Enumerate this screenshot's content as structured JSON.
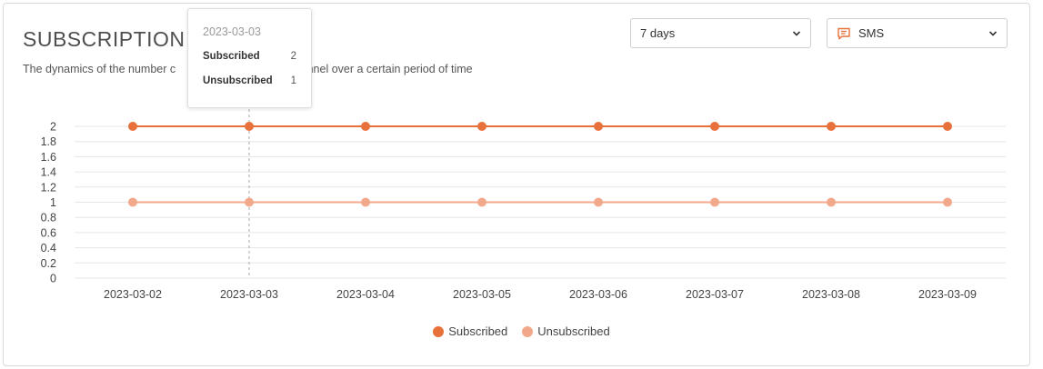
{
  "header": {
    "title": "SUBSCRIPTION D",
    "subtitle": "The dynamics of the number c           annel over a certain period of time"
  },
  "controls": {
    "period": {
      "value": "7 days"
    },
    "channel": {
      "value": "SMS",
      "icon": "chat-bubble-icon"
    }
  },
  "colors": {
    "subscribed": "#e8703a",
    "unsubscribed": "#f2a98b",
    "grid": "#e6e6e6"
  },
  "tooltip": {
    "date": "2023-03-03",
    "rows": [
      {
        "label": "Subscribed",
        "value": "2"
      },
      {
        "label": "Unsubscribed",
        "value": "1"
      }
    ]
  },
  "chart_data": {
    "type": "line",
    "x": [
      "2023-03-02",
      "2023-03-03",
      "2023-03-04",
      "2023-03-05",
      "2023-03-06",
      "2023-03-07",
      "2023-03-08",
      "2023-03-09"
    ],
    "series": [
      {
        "name": "Subscribed",
        "values": [
          2,
          2,
          2,
          2,
          2,
          2,
          2,
          2
        ]
      },
      {
        "name": "Unsubscribed",
        "values": [
          1,
          1,
          1,
          1,
          1,
          1,
          1,
          1
        ]
      }
    ],
    "yticks": [
      "0",
      "0.2",
      "0.4",
      "0.6",
      "0.8",
      "1",
      "1.2",
      "1.4",
      "1.6",
      "1.8",
      "2"
    ],
    "ylim": [
      0,
      2
    ],
    "grid": true,
    "legend_position": "bottom-center",
    "hover_index": 1
  }
}
